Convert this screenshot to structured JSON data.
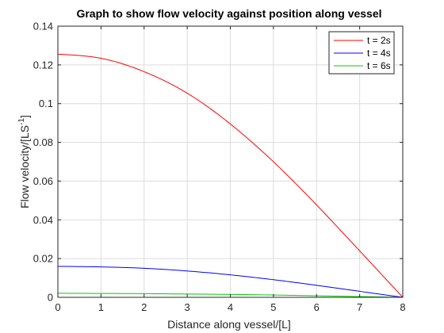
{
  "chart_data": {
    "type": "line",
    "title": "Graph to show flow velocity against position along vessel",
    "xlabel": "Distance along vessel/[L]",
    "ylabel_main": "Flow velocity/[LS",
    "ylabel_sup": "-1",
    "ylabel_end": "]",
    "xlim": [
      0,
      8
    ],
    "ylim": [
      0,
      0.14
    ],
    "xticks": [
      0,
      1,
      2,
      3,
      4,
      5,
      6,
      7,
      8
    ],
    "xtick_labels": [
      "0",
      "1",
      "2",
      "3",
      "4",
      "5",
      "6",
      "7",
      "8"
    ],
    "yticks": [
      0,
      0.02,
      0.04,
      0.06,
      0.08,
      0.1,
      0.12,
      0.14
    ],
    "ytick_labels": [
      "0",
      "0.02",
      "0.04",
      "0.06",
      "0.08",
      "0.1",
      "0.12",
      "0.14"
    ],
    "grid": true,
    "legend_position": "top-right",
    "x": [
      0,
      1,
      2,
      3,
      4,
      5,
      6,
      7,
      8
    ],
    "series": [
      {
        "name": "t = 2s",
        "color": "#ff0000",
        "values": [
          0.1255,
          0.1234,
          0.1165,
          0.1054,
          0.0895,
          0.07,
          0.0477,
          0.024,
          0.0
        ]
      },
      {
        "name": "t = 4s",
        "color": "#0000ff",
        "values": [
          0.016,
          0.0157,
          0.015,
          0.0136,
          0.0116,
          0.0091,
          0.0062,
          0.0031,
          0.0
        ]
      },
      {
        "name": "t = 6s",
        "color": "#00cc00",
        "values": [
          0.0021,
          0.002,
          0.0019,
          0.0017,
          0.0015,
          0.0012,
          0.0008,
          0.0004,
          0.0
        ]
      }
    ]
  }
}
